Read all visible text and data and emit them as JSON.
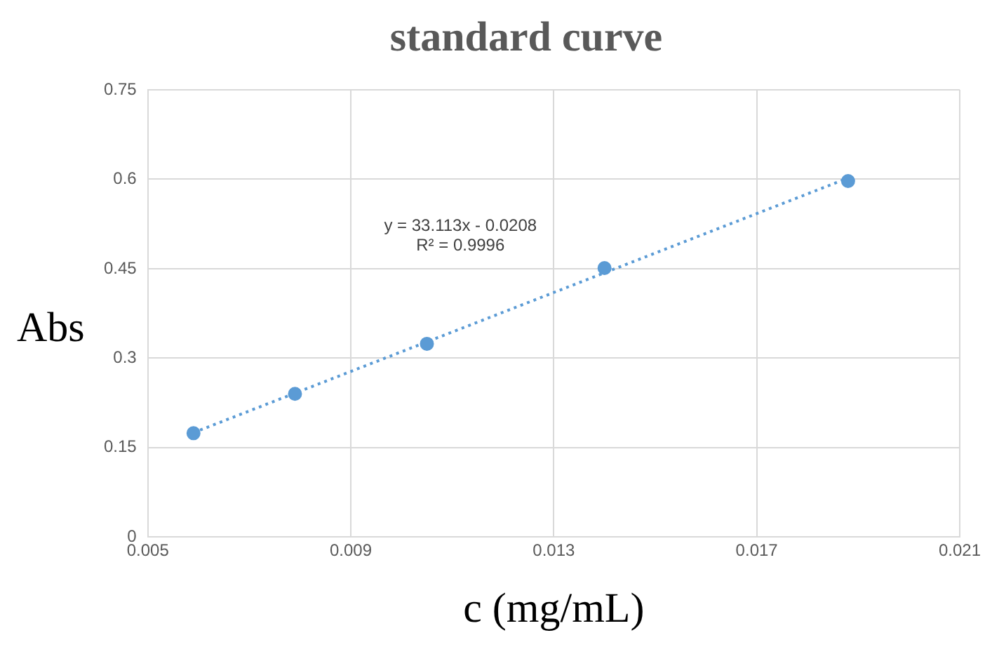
{
  "chart_data": {
    "type": "scatter",
    "title": "standard curve",
    "xlabel": "c (mg/mL)",
    "ylabel": "Abs",
    "series": [
      {
        "type": "scatter",
        "color": "#5b9bd5",
        "x": [
          0.0059,
          0.0079,
          0.0105,
          0.014,
          0.0188
        ],
        "values": [
          0.174,
          0.24,
          0.324,
          0.451,
          0.597
        ],
        "marker": "circle"
      },
      {
        "type": "line",
        "color": "#5b9bd5",
        "x": [
          0.0059,
          0.0188
        ],
        "values": [
          0.175,
          0.602
        ],
        "line_style": "dotted",
        "marker": "none"
      }
    ],
    "annotations": [
      "y = 33.113x - 0.0208",
      "R² = 0.9996"
    ],
    "xlim": [
      0.005,
      0.021
    ],
    "xticks": [
      0.005,
      0.009,
      0.013,
      0.017,
      0.021
    ],
    "ylim": [
      0,
      0.75
    ],
    "yticks": [
      0,
      0.15,
      0.3,
      0.45,
      0.6,
      0.75
    ],
    "grid": true,
    "legend": false
  }
}
